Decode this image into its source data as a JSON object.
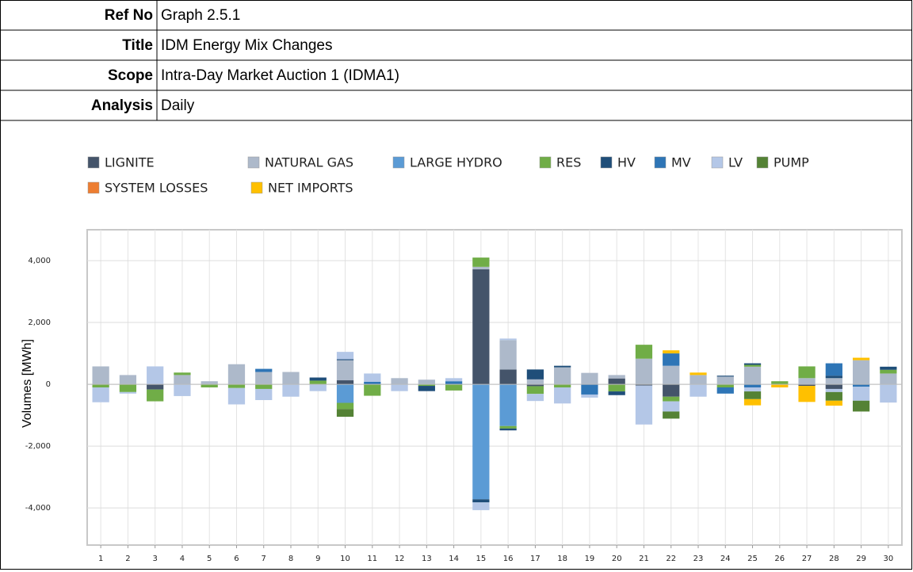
{
  "header": {
    "rows": [
      [
        "Ref No",
        "Graph 2.5.1"
      ],
      [
        "Title",
        "IDM Energy Mix Changes"
      ],
      [
        "Scope",
        "Intra-Day Market Auction 1 (IDMA1)"
      ],
      [
        "Analysis",
        "Daily"
      ]
    ]
  },
  "chart_data": {
    "type": "stacked-bar",
    "y_label": "Volumes [MWh]",
    "categories": [
      "1",
      "2",
      "3",
      "4",
      "5",
      "6",
      "7",
      "8",
      "9",
      "10",
      "11",
      "12",
      "13",
      "14",
      "15",
      "16",
      "17",
      "18",
      "19",
      "20",
      "21",
      "22",
      "23",
      "24",
      "25",
      "26",
      "27",
      "28",
      "29",
      "30"
    ],
    "ylim": [
      -5200,
      5000
    ],
    "yticks": [
      {
        "value": -4000,
        "label": "-4,000"
      },
      {
        "value": -2000,
        "label": "-2,000"
      },
      0,
      {
        "value": 2000,
        "label": "2,000"
      },
      {
        "value": 4000,
        "label": "4,000"
      }
    ],
    "grid": true,
    "series": [
      {
        "name": "LIGNITE",
        "color": "#44546a",
        "values": [
          0,
          0,
          -170,
          0,
          0,
          0,
          0,
          0,
          0,
          130,
          0,
          0,
          0,
          0,
          3720,
          480,
          -60,
          0,
          0,
          190,
          -40,
          -400,
          0,
          0,
          0,
          0,
          -50,
          -150,
          0,
          0
        ]
      },
      {
        "name": "NATURAL GAS",
        "color": "#adb9ca",
        "values": [
          580,
          300,
          0,
          300,
          100,
          650,
          400,
          400,
          0,
          650,
          0,
          200,
          150,
          0,
          80,
          950,
          160,
          550,
          370,
          110,
          830,
          600,
          300,
          250,
          570,
          0,
          200,
          200,
          780,
          350
        ]
      },
      {
        "name": "LARGE HYDRO",
        "color": "#5b9bd5",
        "values": [
          0,
          0,
          0,
          0,
          0,
          0,
          0,
          0,
          0,
          -600,
          0,
          0,
          0,
          0,
          -3720,
          -1350,
          0,
          0,
          0,
          0,
          0,
          0,
          0,
          0,
          0,
          0,
          0,
          0,
          0,
          0
        ]
      },
      {
        "name": "RES",
        "color": "#70ad47",
        "values": [
          -100,
          -250,
          -380,
          80,
          -100,
          -120,
          -150,
          0,
          120,
          -200,
          -370,
          0,
          -50,
          -200,
          300,
          -80,
          -250,
          -100,
          0,
          -230,
          450,
          -150,
          0,
          -100,
          60,
          100,
          380,
          0,
          0,
          120
        ]
      },
      {
        "name": "HV",
        "color": "#1f4e79",
        "values": [
          0,
          0,
          0,
          0,
          0,
          0,
          0,
          0,
          100,
          30,
          0,
          0,
          -170,
          0,
          -100,
          -60,
          320,
          50,
          0,
          -120,
          0,
          0,
          0,
          30,
          50,
          0,
          0,
          80,
          0,
          100
        ]
      },
      {
        "name": "MV",
        "color": "#2e75b6",
        "values": [
          0,
          0,
          0,
          0,
          0,
          0,
          100,
          0,
          0,
          0,
          80,
          0,
          0,
          100,
          0,
          0,
          0,
          0,
          -330,
          0,
          0,
          400,
          0,
          -200,
          -100,
          0,
          0,
          400,
          -80,
          0
        ]
      },
      {
        "name": "LV",
        "color": "#b4c7e7",
        "values": [
          -480,
          -50,
          580,
          -380,
          0,
          -530,
          -360,
          -400,
          -220,
          240,
          270,
          -220,
          0,
          100,
          -250,
          50,
          -230,
          -520,
          -100,
          0,
          -1260,
          -330,
          -400,
          0,
          -130,
          0,
          0,
          -100,
          -450,
          -590
        ]
      },
      {
        "name": "PUMP",
        "color": "#548235",
        "values": [
          0,
          0,
          0,
          0,
          0,
          0,
          0,
          0,
          0,
          -250,
          0,
          0,
          0,
          0,
          0,
          0,
          0,
          0,
          0,
          0,
          0,
          -230,
          0,
          0,
          -250,
          0,
          0,
          -280,
          -350,
          0
        ]
      },
      {
        "name": "SYSTEM LOSSES",
        "color": "#ed7d31",
        "values": [
          0,
          0,
          0,
          0,
          0,
          0,
          0,
          0,
          0,
          0,
          0,
          0,
          0,
          0,
          0,
          0,
          0,
          0,
          0,
          0,
          0,
          0,
          0,
          0,
          0,
          0,
          0,
          0,
          0,
          0
        ]
      },
      {
        "name": "NET IMPORTS",
        "color": "#ffc000",
        "values": [
          0,
          0,
          0,
          0,
          0,
          0,
          0,
          0,
          0,
          0,
          0,
          0,
          0,
          0,
          0,
          0,
          0,
          0,
          0,
          0,
          0,
          100,
          80,
          0,
          -200,
          -100,
          -520,
          -160,
          80,
          0
        ]
      }
    ]
  }
}
